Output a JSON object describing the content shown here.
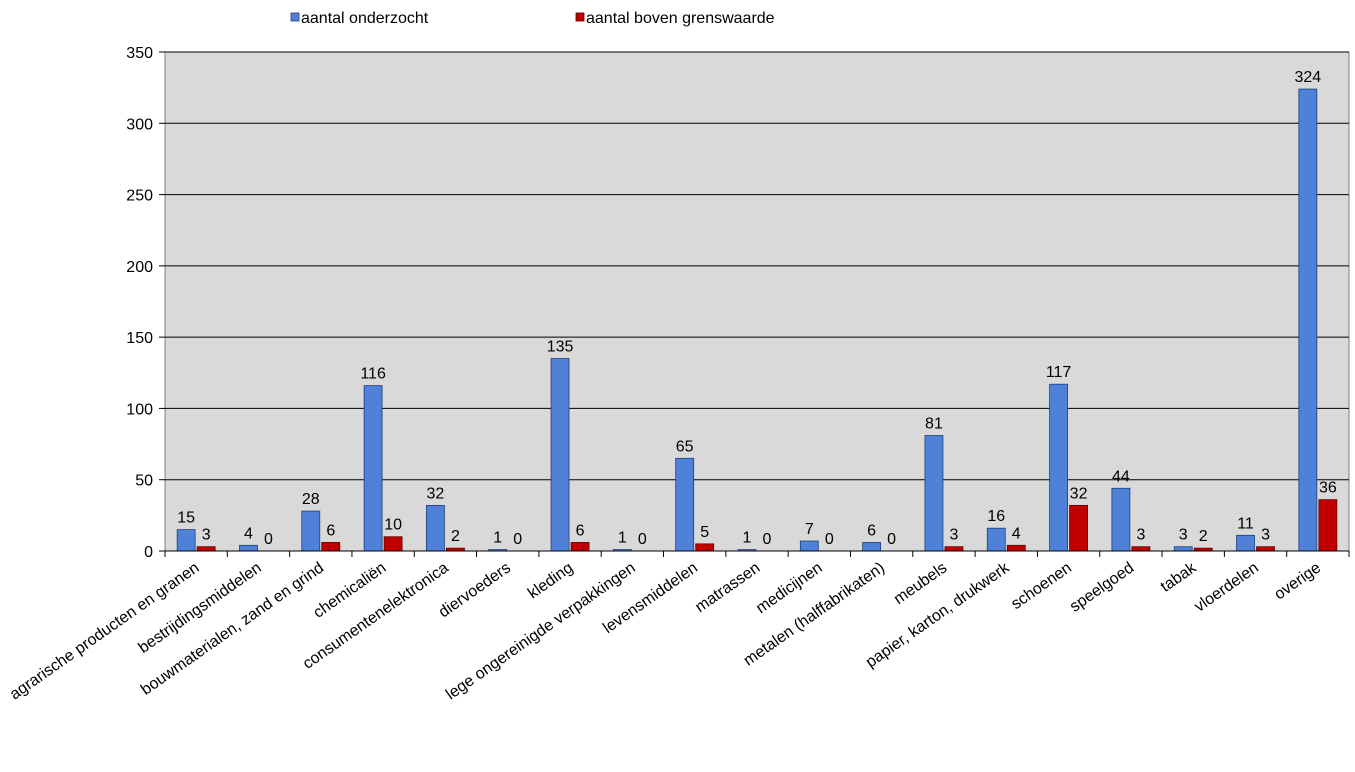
{
  "chart_data": {
    "type": "bar",
    "title": "",
    "xlabel": "",
    "ylabel": "",
    "ylim": [
      0,
      350
    ],
    "yticks": [
      0,
      50,
      100,
      150,
      200,
      250,
      300,
      350
    ],
    "grid": true,
    "legend_position": "top",
    "categories": [
      "agrarische producten en granen",
      "bestrijdingsmiddelen",
      "bouwmaterialen, zand en grind",
      "chemicaliën",
      "consumentenelektronica",
      "diervoeders",
      "kleding",
      "lege ongereinigde verpakkingen",
      "levensmiddelen",
      "matrassen",
      "medicijnen",
      "metalen (halffabrikaten)",
      "meubels",
      "papier, karton, drukwerk",
      "schoenen",
      "speelgoed",
      "tabak",
      "vloerdelen",
      "overige"
    ],
    "series": [
      {
        "name": "aantal onderzocht",
        "color": "#4f81d8",
        "values": [
          15,
          4,
          28,
          116,
          32,
          1,
          135,
          1,
          65,
          1,
          7,
          6,
          81,
          16,
          117,
          44,
          3,
          11,
          324
        ]
      },
      {
        "name": "aantal boven grenswaarde",
        "color": "#c00000",
        "values": [
          3,
          0,
          6,
          10,
          2,
          0,
          6,
          0,
          5,
          0,
          0,
          0,
          3,
          4,
          32,
          3,
          2,
          3,
          36
        ]
      }
    ]
  }
}
